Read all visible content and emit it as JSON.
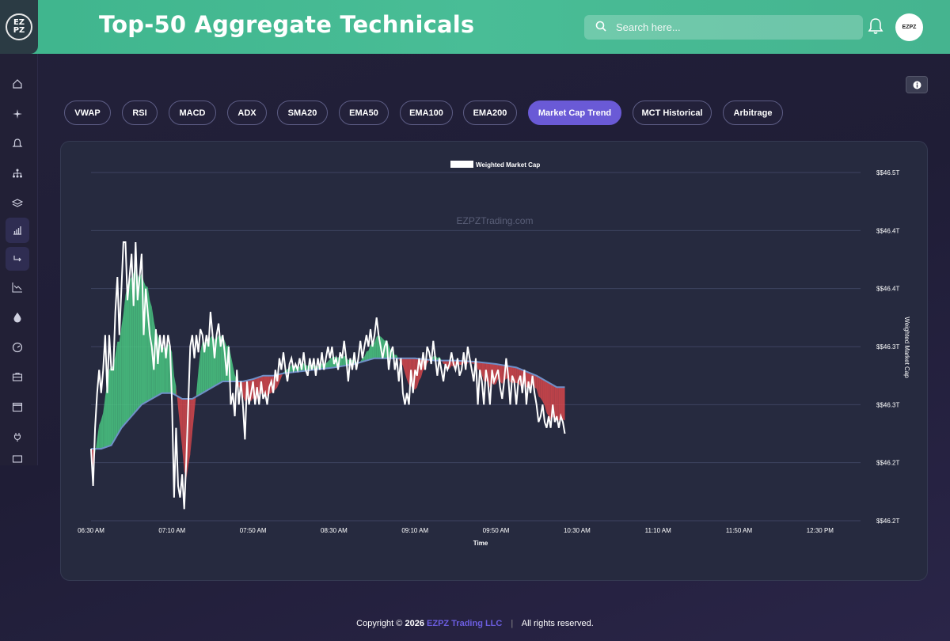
{
  "app": {
    "logo_text_top": "EZ",
    "logo_text_bottom": "PZ",
    "page_title": "Top-50 Aggregate Technicals",
    "avatar_text": "EZPZ"
  },
  "search": {
    "placeholder": "Search here..."
  },
  "tabs": [
    {
      "label": "VWAP",
      "active": false
    },
    {
      "label": "RSI",
      "active": false
    },
    {
      "label": "MACD",
      "active": false
    },
    {
      "label": "ADX",
      "active": false
    },
    {
      "label": "SMA20",
      "active": false
    },
    {
      "label": "EMA50",
      "active": false
    },
    {
      "label": "EMA100",
      "active": false
    },
    {
      "label": "EMA200",
      "active": false
    },
    {
      "label": "Market Cap Trend",
      "active": true
    },
    {
      "label": "MCT Historical",
      "active": false
    },
    {
      "label": "Arbitrage",
      "active": false
    }
  ],
  "sidebar": {
    "items": [
      {
        "icon": "home-icon"
      },
      {
        "icon": "sparkle-icon"
      },
      {
        "icon": "bell-icon"
      },
      {
        "icon": "sitemap-icon"
      },
      {
        "icon": "layers-icon"
      },
      {
        "icon": "bar-chart-icon"
      },
      {
        "icon": "redirect-icon"
      },
      {
        "icon": "trend-down-icon"
      },
      {
        "icon": "droplet-icon"
      },
      {
        "icon": "gauge-icon"
      },
      {
        "icon": "briefcase-icon"
      },
      {
        "icon": "calendar-icon"
      },
      {
        "icon": "plug-icon"
      },
      {
        "icon": "card-icon"
      }
    ]
  },
  "chart_data": {
    "type": "line",
    "legend": "Weighted Market Cap",
    "watermark": "EZPZTrading.com",
    "xlabel": "Time",
    "ylabel": "Weighted Market Cap",
    "x_ticks": [
      "06:30 AM",
      "07:10 AM",
      "07:50 AM",
      "08:30 AM",
      "09:10 AM",
      "09:50 AM",
      "10:30 AM",
      "11:10 AM",
      "11:50 AM",
      "12:30 PM"
    ],
    "y_ticks": [
      "$$46.5T",
      "$$46.4T",
      "$$46.4T",
      "$$46.3T",
      "$$46.3T",
      "$$46.2T",
      "$$46.2T"
    ],
    "y_range": [
      46.2,
      46.5
    ],
    "x_range_minutes": [
      0,
      380
    ],
    "series": [
      {
        "name": "Weighted Market Cap",
        "color": "#ffffff",
        "points": [
          [
            0,
            46.262
          ],
          [
            1,
            46.23
          ],
          [
            2,
            46.28
          ],
          [
            3,
            46.31
          ],
          [
            4,
            46.33
          ],
          [
            5,
            46.31
          ],
          [
            6,
            46.33
          ],
          [
            7,
            46.36
          ],
          [
            8,
            46.31
          ],
          [
            9,
            46.36
          ],
          [
            10,
            46.33
          ],
          [
            11,
            46.33
          ],
          [
            12,
            46.38
          ],
          [
            13,
            46.41
          ],
          [
            14,
            46.36
          ],
          [
            15,
            46.4
          ],
          [
            16,
            46.44
          ],
          [
            17,
            46.44
          ],
          [
            18,
            46.39
          ],
          [
            19,
            46.41
          ],
          [
            20,
            46.43
          ],
          [
            21,
            46.385
          ],
          [
            22,
            46.44
          ],
          [
            23,
            46.39
          ],
          [
            24,
            46.41
          ],
          [
            25,
            46.43
          ],
          [
            26,
            46.36
          ],
          [
            27,
            46.4
          ],
          [
            28,
            46.38
          ],
          [
            29,
            46.36
          ],
          [
            30,
            46.35
          ],
          [
            31,
            46.33
          ],
          [
            32,
            46.365
          ],
          [
            33,
            46.335
          ],
          [
            34,
            46.36
          ],
          [
            35,
            46.345
          ],
          [
            36,
            46.36
          ],
          [
            37,
            46.34
          ],
          [
            38,
            46.36
          ],
          [
            39,
            46.35
          ],
          [
            40,
            46.3
          ],
          [
            41,
            46.22
          ],
          [
            42,
            46.28
          ],
          [
            43,
            46.23
          ],
          [
            44,
            46.22
          ],
          [
            45,
            46.24
          ],
          [
            46,
            46.21
          ],
          [
            47,
            46.25
          ],
          [
            48,
            46.3
          ],
          [
            49,
            46.35
          ],
          [
            50,
            46.36
          ],
          [
            51,
            46.34
          ],
          [
            52,
            46.36
          ],
          [
            53,
            46.345
          ],
          [
            54,
            46.365
          ],
          [
            55,
            46.36
          ],
          [
            56,
            46.345
          ],
          [
            57,
            46.36
          ],
          [
            58,
            46.35
          ],
          [
            59,
            46.38
          ],
          [
            60,
            46.36
          ],
          [
            61,
            46.34
          ],
          [
            62,
            46.36
          ],
          [
            63,
            46.37
          ],
          [
            64,
            46.35
          ],
          [
            65,
            46.36
          ],
          [
            66,
            46.345
          ],
          [
            67,
            46.325
          ],
          [
            68,
            46.35
          ],
          [
            69,
            46.3
          ],
          [
            70,
            46.31
          ],
          [
            71,
            46.29
          ],
          [
            72,
            46.33
          ],
          [
            73,
            46.3
          ],
          [
            74,
            46.32
          ],
          [
            75,
            46.3
          ],
          [
            76,
            46.27
          ],
          [
            77,
            46.32
          ],
          [
            78,
            46.3
          ],
          [
            79,
            46.31
          ],
          [
            80,
            46.32
          ],
          [
            81,
            46.3
          ],
          [
            82,
            46.315
          ],
          [
            83,
            46.3
          ],
          [
            84,
            46.32
          ],
          [
            85,
            46.305
          ],
          [
            86,
            46.31
          ],
          [
            87,
            46.3
          ],
          [
            88,
            46.315
          ],
          [
            89,
            46.32
          ],
          [
            90,
            46.31
          ],
          [
            91,
            46.33
          ],
          [
            92,
            46.32
          ],
          [
            93,
            46.34
          ],
          [
            94,
            46.33
          ],
          [
            95,
            46.345
          ],
          [
            96,
            46.33
          ],
          [
            97,
            46.32
          ],
          [
            98,
            46.335
          ],
          [
            99,
            46.34
          ],
          [
            100,
            46.33
          ],
          [
            101,
            46.335
          ],
          [
            102,
            46.33
          ],
          [
            103,
            46.34
          ],
          [
            104,
            46.33
          ],
          [
            105,
            46.345
          ],
          [
            106,
            46.33
          ],
          [
            107,
            46.325
          ],
          [
            108,
            46.34
          ],
          [
            109,
            46.33
          ],
          [
            110,
            46.34
          ],
          [
            111,
            46.325
          ],
          [
            112,
            46.34
          ],
          [
            113,
            46.33
          ],
          [
            114,
            46.345
          ],
          [
            115,
            46.33
          ],
          [
            116,
            46.34
          ],
          [
            117,
            46.35
          ],
          [
            118,
            46.34
          ],
          [
            119,
            46.35
          ],
          [
            120,
            46.335
          ],
          [
            121,
            46.34
          ],
          [
            122,
            46.33
          ],
          [
            123,
            46.345
          ],
          [
            124,
            46.34
          ],
          [
            125,
            46.355
          ],
          [
            126,
            46.34
          ],
          [
            127,
            46.32
          ],
          [
            128,
            46.34
          ],
          [
            129,
            46.33
          ],
          [
            130,
            46.345
          ],
          [
            131,
            46.33
          ],
          [
            132,
            46.34
          ],
          [
            133,
            46.355
          ],
          [
            134,
            46.34
          ],
          [
            135,
            46.35
          ],
          [
            136,
            46.36
          ],
          [
            137,
            46.35
          ],
          [
            138,
            46.365
          ],
          [
            139,
            46.35
          ],
          [
            140,
            46.36
          ],
          [
            141,
            46.375
          ],
          [
            142,
            46.36
          ],
          [
            143,
            46.35
          ],
          [
            144,
            46.34
          ],
          [
            145,
            46.35
          ],
          [
            146,
            46.355
          ],
          [
            147,
            46.33
          ],
          [
            148,
            46.345
          ],
          [
            149,
            46.35
          ],
          [
            150,
            46.33
          ],
          [
            151,
            46.34
          ],
          [
            152,
            46.32
          ],
          [
            153,
            46.34
          ],
          [
            154,
            46.31
          ],
          [
            155,
            46.3
          ],
          [
            156,
            46.31
          ],
          [
            157,
            46.3
          ],
          [
            158,
            46.33
          ],
          [
            159,
            46.31
          ],
          [
            160,
            46.33
          ],
          [
            161,
            46.325
          ],
          [
            162,
            46.34
          ],
          [
            163,
            46.33
          ],
          [
            164,
            46.345
          ],
          [
            165,
            46.33
          ],
          [
            166,
            46.35
          ],
          [
            167,
            46.345
          ],
          [
            168,
            46.335
          ],
          [
            169,
            46.355
          ],
          [
            170,
            46.34
          ],
          [
            171,
            46.325
          ],
          [
            172,
            46.34
          ],
          [
            173,
            46.33
          ],
          [
            174,
            46.32
          ],
          [
            175,
            46.335
          ],
          [
            176,
            46.33
          ],
          [
            177,
            46.335
          ],
          [
            178,
            46.345
          ],
          [
            179,
            46.335
          ],
          [
            180,
            46.33
          ],
          [
            181,
            46.34
          ],
          [
            182,
            46.325
          ],
          [
            183,
            46.33
          ],
          [
            184,
            46.345
          ],
          [
            185,
            46.33
          ],
          [
            186,
            46.35
          ],
          [
            187,
            46.34
          ],
          [
            188,
            46.33
          ],
          [
            189,
            46.32
          ],
          [
            190,
            46.34
          ],
          [
            191,
            46.3
          ],
          [
            192,
            46.33
          ],
          [
            193,
            46.32
          ],
          [
            194,
            46.3
          ],
          [
            195,
            46.33
          ],
          [
            196,
            46.32
          ],
          [
            197,
            46.3
          ],
          [
            198,
            46.33
          ],
          [
            199,
            46.32
          ],
          [
            200,
            46.325
          ],
          [
            201,
            46.33
          ],
          [
            202,
            46.315
          ],
          [
            203,
            46.305
          ],
          [
            204,
            46.32
          ],
          [
            205,
            46.34
          ],
          [
            206,
            46.325
          ],
          [
            207,
            46.3
          ],
          [
            208,
            46.325
          ],
          [
            209,
            46.32
          ],
          [
            210,
            46.3
          ],
          [
            211,
            46.32
          ],
          [
            212,
            46.325
          ],
          [
            213,
            46.31
          ],
          [
            214,
            46.33
          ],
          [
            215,
            46.3
          ],
          [
            216,
            46.32
          ],
          [
            217,
            46.31
          ],
          [
            218,
            46.325
          ],
          [
            219,
            46.31
          ],
          [
            220,
            46.3
          ],
          [
            221,
            46.285
          ],
          [
            222,
            46.29
          ],
          [
            223,
            46.3
          ],
          [
            224,
            46.285
          ],
          [
            225,
            46.28
          ],
          [
            226,
            46.29
          ],
          [
            227,
            46.28
          ],
          [
            228,
            46.3
          ],
          [
            229,
            46.285
          ],
          [
            230,
            46.29
          ],
          [
            231,
            46.28
          ],
          [
            232,
            46.29
          ],
          [
            233,
            46.285
          ],
          [
            234,
            46.275
          ]
        ]
      },
      {
        "name": "Trend",
        "color": "#5b7fb5",
        "points": [
          [
            0,
            46.262
          ],
          [
            5,
            46.262
          ],
          [
            10,
            46.265
          ],
          [
            15,
            46.28
          ],
          [
            20,
            46.29
          ],
          [
            25,
            46.3
          ],
          [
            30,
            46.305
          ],
          [
            35,
            46.31
          ],
          [
            40,
            46.31
          ],
          [
            45,
            46.305
          ],
          [
            50,
            46.305
          ],
          [
            55,
            46.31
          ],
          [
            60,
            46.315
          ],
          [
            65,
            46.32
          ],
          [
            70,
            46.32
          ],
          [
            75,
            46.32
          ],
          [
            80,
            46.322
          ],
          [
            85,
            46.325
          ],
          [
            90,
            46.325
          ],
          [
            95,
            46.327
          ],
          [
            100,
            46.328
          ],
          [
            110,
            46.33
          ],
          [
            120,
            46.332
          ],
          [
            130,
            46.335
          ],
          [
            140,
            46.34
          ],
          [
            150,
            46.34
          ],
          [
            160,
            46.34
          ],
          [
            170,
            46.338
          ],
          [
            180,
            46.338
          ],
          [
            190,
            46.337
          ],
          [
            200,
            46.335
          ],
          [
            210,
            46.332
          ],
          [
            220,
            46.325
          ],
          [
            230,
            46.315
          ],
          [
            234,
            46.315
          ]
        ]
      }
    ]
  },
  "footer": {
    "copyright": "Copyright ©",
    "year": "2026",
    "company": "EZPZ Trading LLC",
    "separator": "|",
    "rights": "All rights reserved."
  }
}
